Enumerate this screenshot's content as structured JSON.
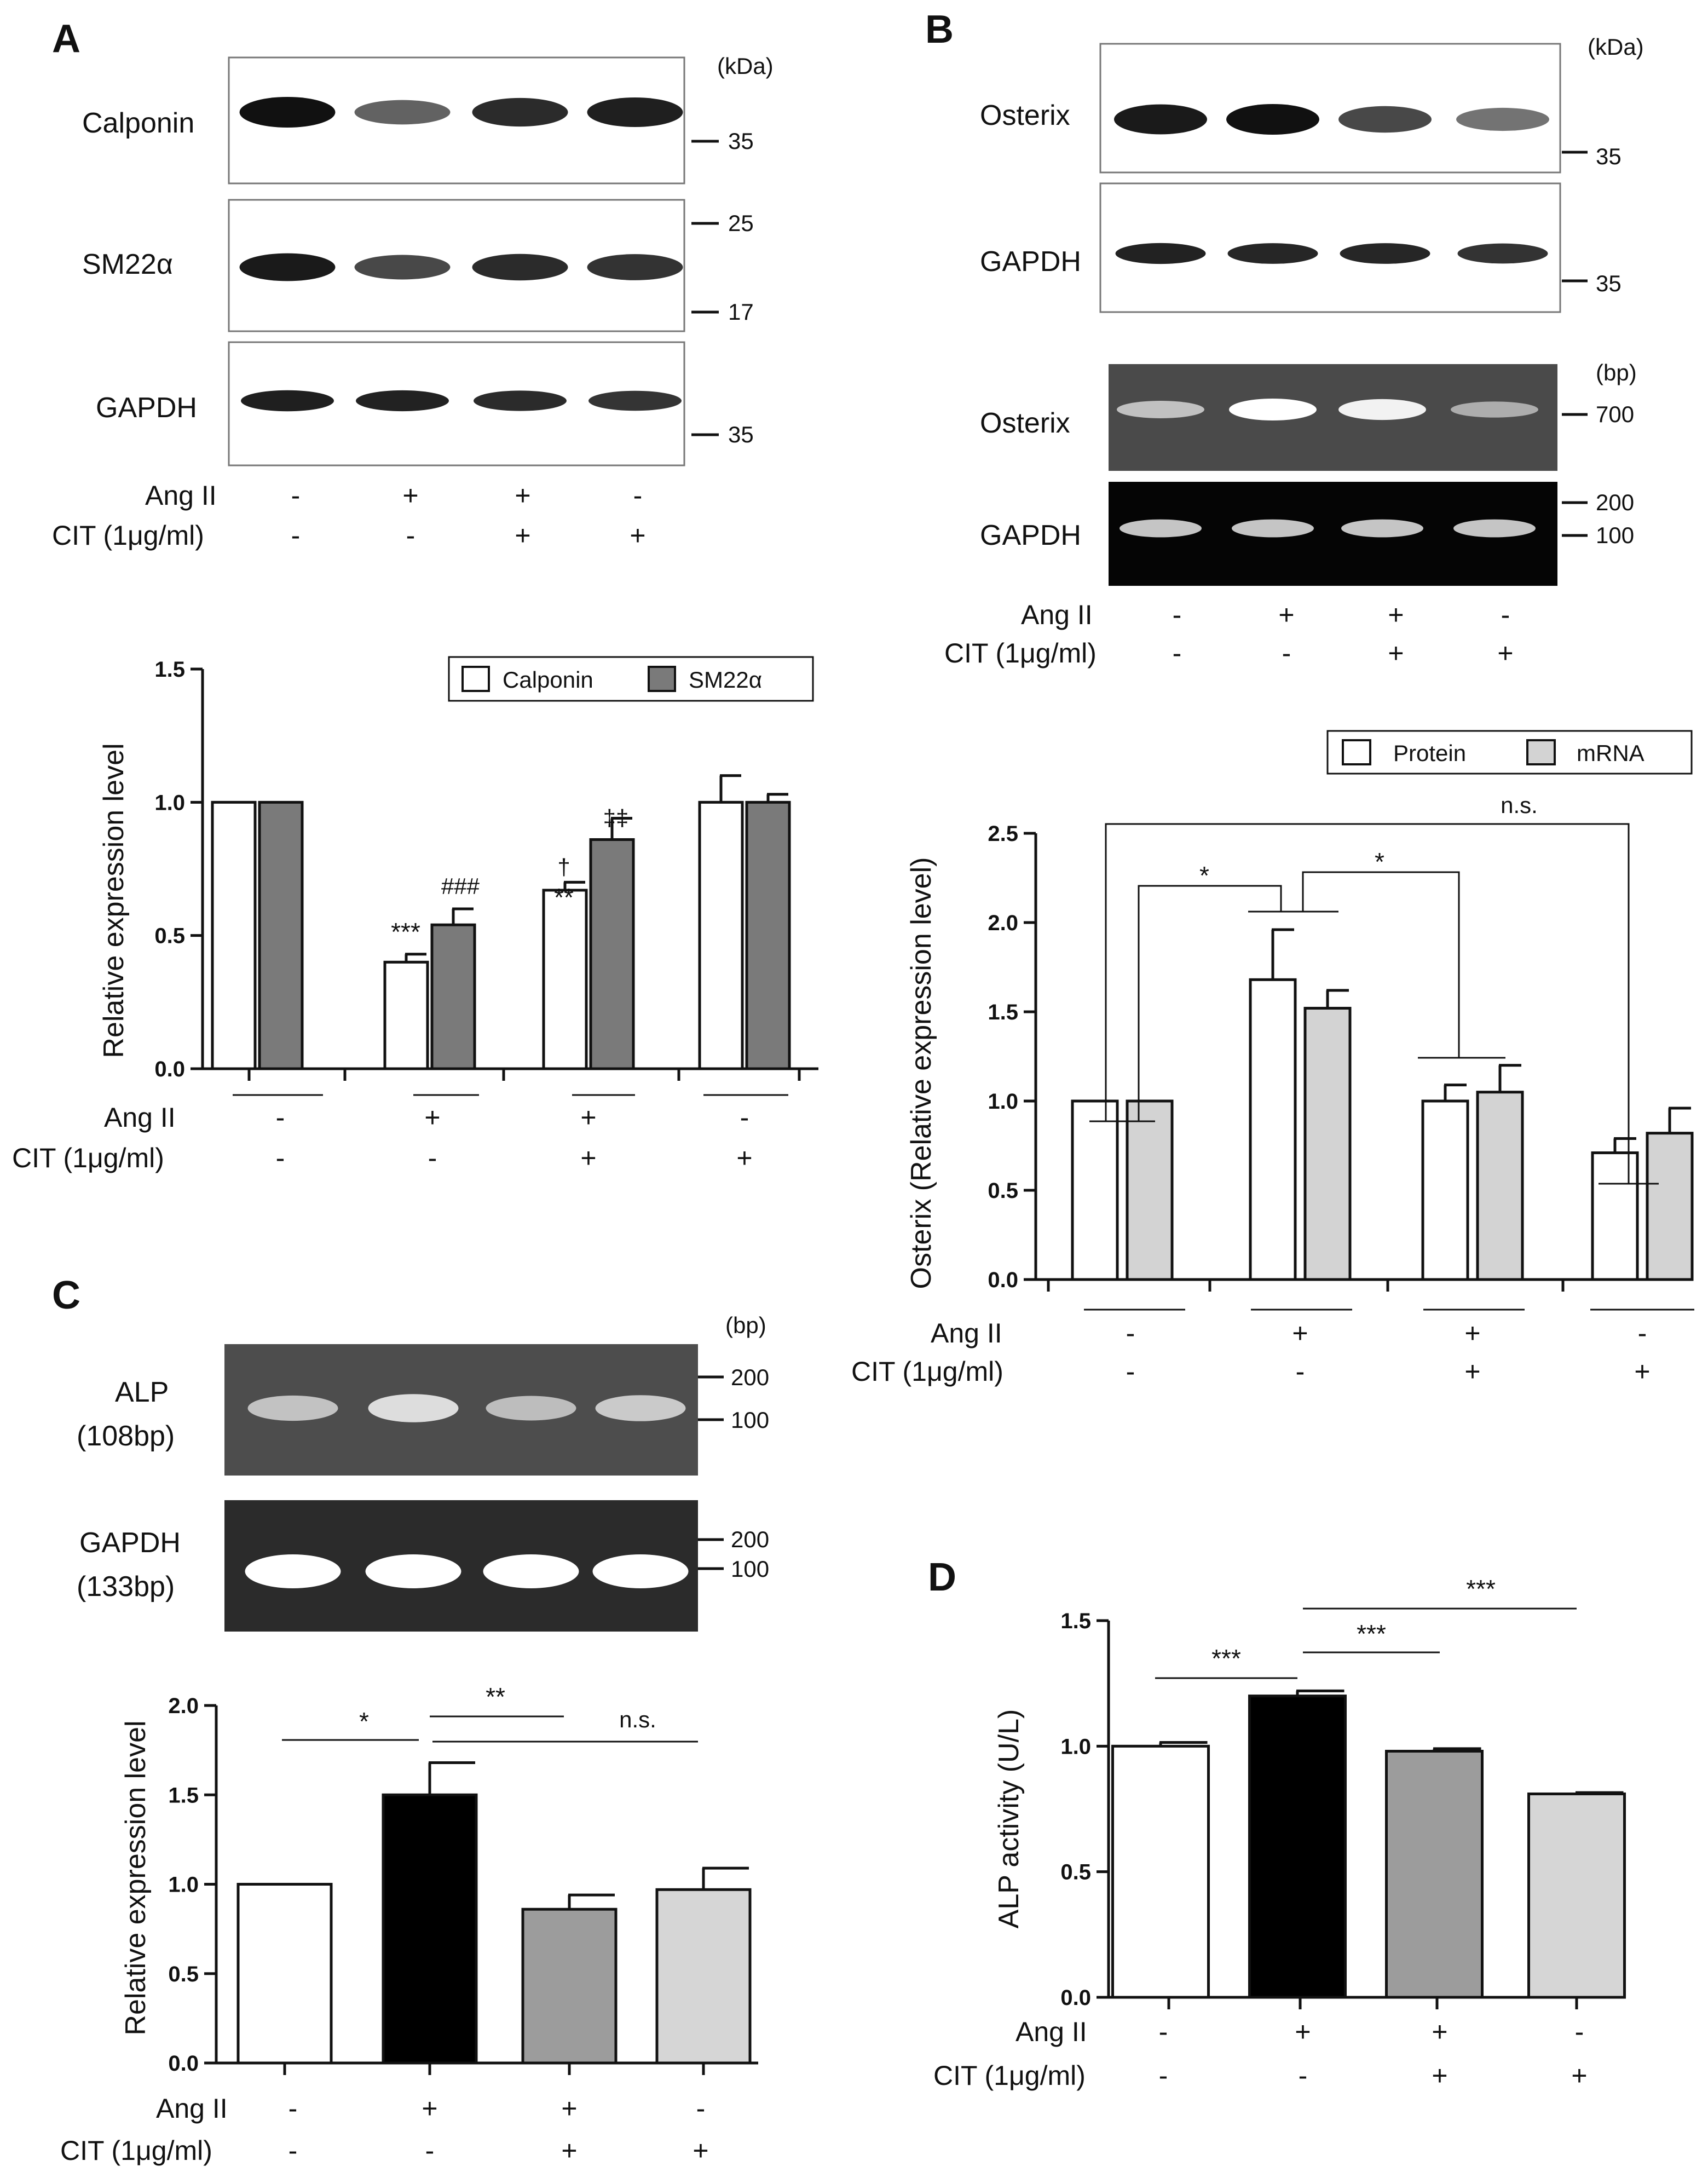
{
  "panels": {
    "A": {
      "label": "A",
      "blot_unit": "(kDa)",
      "blots": [
        {
          "name": "Calponin",
          "markers": [
            "35"
          ],
          "intensity": [
            1.0,
            0.55,
            0.85,
            0.92
          ]
        },
        {
          "name": "SM22α",
          "markers": [
            "25",
            "17"
          ],
          "intensity": [
            0.95,
            0.7,
            0.85,
            0.82
          ]
        },
        {
          "name": "GAPDH",
          "markers": [
            "35"
          ],
          "intensity": [
            0.92,
            0.9,
            0.85,
            0.8
          ]
        }
      ],
      "conditions": {
        "row1_label": "Ang II",
        "row2_label": "CIT (1μg/ml)",
        "angii": [
          "-",
          "+",
          "+",
          "-"
        ],
        "cit": [
          "-",
          "-",
          "+",
          "+"
        ]
      }
    },
    "B": {
      "label": "B",
      "blot_unit": "(kDa)",
      "gel_unit": "(bp)",
      "blots": [
        {
          "name": "Osterix",
          "markers": [
            "35"
          ],
          "intensity": [
            0.95,
            1.0,
            0.7,
            0.45
          ]
        },
        {
          "name": "GAPDH",
          "markers": [
            "35"
          ],
          "intensity": [
            0.9,
            0.88,
            0.88,
            0.82
          ]
        }
      ],
      "gels": [
        {
          "name": "Osterix",
          "markers": [
            "700"
          ],
          "intensity": [
            0.55,
            1.0,
            0.9,
            0.4
          ]
        },
        {
          "name": "GAPDH",
          "markers": [
            "200",
            "100"
          ],
          "intensity": [
            0.7,
            0.7,
            0.7,
            0.7
          ]
        }
      ],
      "conditions": {
        "row1_label": "Ang II",
        "row2_label": "CIT (1μg/ml)",
        "angii": [
          "-",
          "+",
          "+",
          "-"
        ],
        "cit": [
          "-",
          "-",
          "+",
          "+"
        ]
      }
    },
    "C": {
      "label": "C",
      "gel_unit": "(bp)",
      "gels": [
        {
          "name": "ALP",
          "subname": "(108bp)",
          "markers": [
            "200",
            "100"
          ],
          "intensity": [
            0.55,
            0.75,
            0.5,
            0.6
          ]
        },
        {
          "name": "GAPDH",
          "subname": "(133bp)",
          "markers": [
            "200",
            "100"
          ],
          "intensity": [
            1.0,
            1.0,
            1.0,
            1.0
          ]
        }
      ],
      "conditions": {
        "row1_label": "Ang II",
        "row2_label": "CIT (1μg/ml)",
        "angii": [
          "-",
          "+",
          "+",
          "-"
        ],
        "cit": [
          "-",
          "-",
          "+",
          "+"
        ]
      }
    },
    "D": {
      "label": "D",
      "conditions": {
        "row1_label": "Ang II",
        "row2_label": "CIT (1μg/ml)",
        "angii": [
          "-",
          "+",
          "+",
          "-"
        ],
        "cit": [
          "-",
          "-",
          "+",
          "+"
        ]
      }
    }
  },
  "chart_data": [
    {
      "panel": "A",
      "type": "bar",
      "categories": [
        "1",
        "2",
        "3",
        "4"
      ],
      "ylabel": "Relative expression level",
      "ylim": [
        0,
        1.5
      ],
      "yticks": [
        "0.0",
        "0.5",
        "1.0",
        "1.5"
      ],
      "legend_position": "top-right",
      "series": [
        {
          "name": "Calponin",
          "color": "#ffffff",
          "values": [
            1.0,
            0.4,
            0.67,
            1.0
          ],
          "errors": [
            0,
            0.03,
            0.03,
            0.1
          ]
        },
        {
          "name": "SM22α",
          "color": "#7a7a7a",
          "values": [
            1.0,
            0.54,
            0.86,
            1.0
          ],
          "errors": [
            0,
            0.06,
            0.08,
            0.03
          ]
        }
      ],
      "annotations": [
        "***",
        "###",
        "**",
        "†",
        "‡‡"
      ]
    },
    {
      "panel": "B",
      "type": "bar",
      "categories": [
        "1",
        "2",
        "3",
        "4"
      ],
      "ylabel": "Osterix (Relative expression level)",
      "ylim": [
        0,
        2.5
      ],
      "yticks": [
        "0.0",
        "0.5",
        "1.0",
        "1.5",
        "2.0",
        "2.5"
      ],
      "legend_position": "top-right",
      "series": [
        {
          "name": "Protein",
          "color": "#ffffff",
          "values": [
            1.0,
            1.68,
            1.0,
            0.71
          ],
          "errors": [
            0,
            0.28,
            0.09,
            0.08
          ]
        },
        {
          "name": "mRNA",
          "color": "#d3d3d3",
          "values": [
            1.0,
            1.52,
            1.05,
            0.82
          ],
          "errors": [
            0,
            0.1,
            0.15,
            0.14
          ]
        }
      ],
      "annotations": [
        "*",
        "*",
        "n.s."
      ]
    },
    {
      "panel": "C",
      "type": "bar",
      "categories": [
        "1",
        "2",
        "3",
        "4"
      ],
      "ylabel": "Relative expression level",
      "ylim": [
        0,
        2.0
      ],
      "yticks": [
        "0.0",
        "0.5",
        "1.0",
        "1.5",
        "2.0"
      ],
      "series": [
        {
          "values": [
            1.0,
            1.5,
            0.86,
            0.97
          ],
          "errors": [
            0,
            0.18,
            0.08,
            0.12
          ],
          "colors": [
            "#ffffff",
            "#000000",
            "#9c9c9c",
            "#d6d6d6"
          ]
        }
      ],
      "annotations": [
        "*",
        "**",
        "n.s."
      ]
    },
    {
      "panel": "D",
      "type": "bar",
      "categories": [
        "1",
        "2",
        "3",
        "4"
      ],
      "ylabel": "ALP activity (U/L)",
      "ylim": [
        0,
        1.5
      ],
      "yticks": [
        "0.0",
        "0.5",
        "1.0",
        "1.5"
      ],
      "series": [
        {
          "values": [
            1.0,
            1.2,
            0.98,
            0.81
          ],
          "errors": [
            0.015,
            0.02,
            0.01,
            0.005
          ],
          "colors": [
            "#ffffff",
            "#000000",
            "#9c9c9c",
            "#d6d6d6"
          ]
        }
      ],
      "annotations": [
        "***",
        "***",
        "***"
      ]
    }
  ]
}
